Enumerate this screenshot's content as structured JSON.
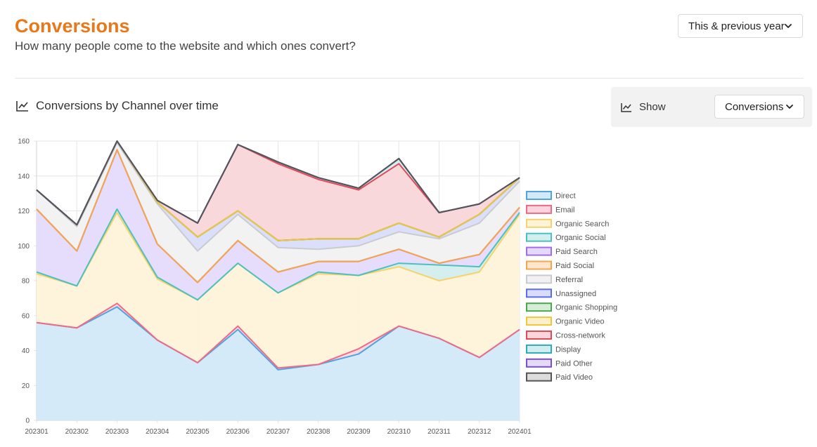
{
  "header": {
    "title": "Conversions",
    "subtitle": "How many people come to the website and which ones convert?"
  },
  "period_select": {
    "value": "This & previous year"
  },
  "section": {
    "title": "Conversions by Channel over time"
  },
  "show_panel": {
    "label": "Show",
    "metric_value": "Conversions"
  },
  "chart_data": {
    "type": "area",
    "stacked": true,
    "title": "Conversions by Channel over time",
    "x": [
      "202301",
      "202302",
      "202303",
      "202304",
      "202305",
      "202306",
      "202307",
      "202308",
      "202309",
      "202310",
      "202311",
      "202312",
      "202401"
    ],
    "ylim": [
      0,
      160
    ],
    "yticks": [
      0,
      20,
      40,
      60,
      80,
      100,
      120,
      140,
      160
    ],
    "grid": true,
    "legend_position": "right",
    "series": [
      {
        "name": "Direct",
        "color": "#4ea5e0",
        "fill": "#d3e9f8",
        "values": [
          56,
          53,
          65,
          46,
          33,
          52,
          29,
          32,
          38,
          54,
          47,
          36,
          52
        ]
      },
      {
        "name": "Email",
        "color": "#f06a86",
        "fill": "#fbd5de",
        "values": [
          0,
          0,
          2,
          0,
          0,
          2,
          1,
          0,
          3,
          0,
          0,
          0,
          0
        ]
      },
      {
        "name": "Organic Search",
        "color": "#f6d36a",
        "fill": "#fdf3d9",
        "values": [
          28,
          24,
          52,
          35,
          36,
          36,
          43,
          52,
          42,
          34,
          33,
          49,
          66
        ]
      },
      {
        "name": "Organic Social",
        "color": "#4cc0c0",
        "fill": "#d3eeee",
        "values": [
          1,
          0,
          2,
          1,
          0,
          0,
          0,
          1,
          0,
          2,
          9,
          3,
          1
        ]
      },
      {
        "name": "Paid Search",
        "color": "#a06cf0",
        "fill": "#e5dafb",
        "values": [
          36,
          20,
          34,
          19,
          10,
          13,
          12,
          6,
          8,
          8,
          1,
          7,
          3
        ]
      },
      {
        "name": "Paid Social",
        "color": "#f5a54a",
        "fill": "#fde6cd",
        "values": [
          0,
          0,
          0,
          0,
          0,
          0,
          0,
          0,
          0,
          0,
          0,
          0,
          0
        ]
      },
      {
        "name": "Referral",
        "color": "#c9cbcf",
        "fill": "#f1f1f2",
        "values": [
          11,
          14,
          4,
          23,
          18,
          15,
          14,
          7,
          9,
          10,
          14,
          18,
          15
        ]
      },
      {
        "name": "Unassigned",
        "color": "#5b6cf0",
        "fill": "#d9ddfb",
        "values": [
          0,
          1,
          1,
          1,
          8,
          2,
          4,
          6,
          4,
          5,
          1,
          5,
          2
        ]
      },
      {
        "name": "Organic Shopping",
        "color": "#4aa74f",
        "fill": "#d5ecd6",
        "values": [
          0,
          0,
          0,
          0,
          0,
          0,
          0,
          0,
          0,
          0,
          0,
          0,
          0
        ]
      },
      {
        "name": "Organic Video",
        "color": "#f0c63a",
        "fill": "#fbf0cc",
        "values": [
          0,
          0,
          0,
          0,
          0,
          0,
          0,
          0,
          0,
          0,
          0,
          0,
          0
        ]
      },
      {
        "name": "Cross-network",
        "color": "#e04a5a",
        "fill": "#f8d6d9",
        "values": [
          0,
          0,
          0,
          1,
          8,
          38,
          44,
          34,
          28,
          34,
          14,
          6,
          0
        ]
      },
      {
        "name": "Display",
        "color": "#2cabb8",
        "fill": "#d1edf0",
        "values": [
          0,
          0,
          0,
          0,
          0,
          0,
          1,
          1,
          1,
          3,
          0,
          0,
          0
        ]
      },
      {
        "name": "Paid Other",
        "color": "#7a4fd0",
        "fill": "#e3dbf5",
        "values": [
          0,
          0,
          0,
          0,
          0,
          0,
          0,
          0,
          0,
          0,
          0,
          0,
          0
        ]
      },
      {
        "name": "Paid Video",
        "color": "#555555",
        "fill": "#dcdcdc",
        "values": [
          0,
          0,
          0,
          0,
          0,
          0,
          0,
          0,
          0,
          0,
          0,
          0,
          0
        ]
      }
    ]
  }
}
